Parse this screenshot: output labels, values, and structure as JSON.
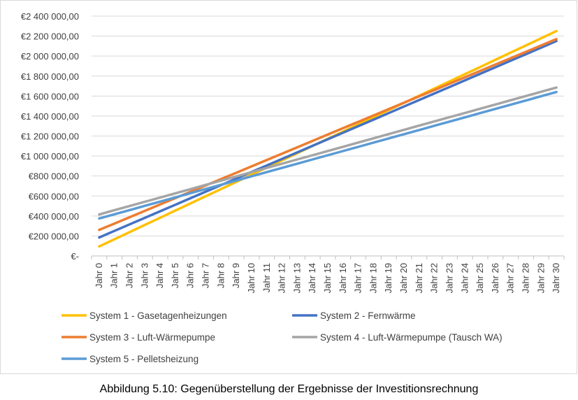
{
  "caption": "Abbildung 5.10: Gegenüberstellung der Ergebnisse der Investitionsrechnung",
  "chart_data": {
    "type": "line",
    "title": "",
    "xlabel": "",
    "ylabel": "",
    "ylim": [
      0,
      2400000
    ],
    "grid": true,
    "legend_position": "bottom",
    "y_ticks": [
      {
        "value": 0,
        "label": "€-"
      },
      {
        "value": 200000,
        "label": "€200 000,00"
      },
      {
        "value": 400000,
        "label": "€400 000,00"
      },
      {
        "value": 600000,
        "label": "€600 000,00"
      },
      {
        "value": 800000,
        "label": "€800 000,00"
      },
      {
        "value": 1000000,
        "label": "€1 000 000,00"
      },
      {
        "value": 1200000,
        "label": "€1 200 000,00"
      },
      {
        "value": 1400000,
        "label": "€1 400 000,00"
      },
      {
        "value": 1600000,
        "label": "€1 600 000,00"
      },
      {
        "value": 1800000,
        "label": "€1 800 000,00"
      },
      {
        "value": 2000000,
        "label": "€2 000 000,00"
      },
      {
        "value": 2200000,
        "label": "€2 200 000,00"
      },
      {
        "value": 2400000,
        "label": "€2 400 000,00"
      }
    ],
    "categories": [
      "Jahr 0",
      "Jahr 1",
      "Jahr 2",
      "Jahr 3",
      "Jahr 4",
      "Jahr 5",
      "Jahr 6",
      "Jahr 7",
      "Jahr 8",
      "Jahr 9",
      "Jahr 10",
      "Jahr 11",
      "Jahr 12",
      "Jahr 13",
      "Jahr 14",
      "Jahr 15",
      "Jahr 16",
      "Jahr 17",
      "Jahr 18",
      "Jahr 19",
      "Jahr 20",
      "Jahr 21",
      "Jahr 22",
      "Jahr 23",
      "Jahr 24",
      "Jahr 25",
      "Jahr 26",
      "Jahr 27",
      "Jahr 28",
      "Jahr 29",
      "Jahr 30"
    ],
    "series": [
      {
        "name": "System 1 - Gasetagenheizungen",
        "color": "#FFC000",
        "start": 95000,
        "end": 2250000
      },
      {
        "name": "System 2 - Fernwärme",
        "color": "#4472C4",
        "start": 185000,
        "end": 2150000
      },
      {
        "name": "System 3 - Luft-Wärmepumpe",
        "color": "#ED7D31",
        "start": 260000,
        "end": 2170000
      },
      {
        "name": "System 4 - Luft-Wärmepumpe (Tausch WA)",
        "color": "#A5A5A5",
        "start": 415000,
        "end": 1685000
      },
      {
        "name": "System 5 - Pelletsheizung",
        "color": "#5B9BD5",
        "start": 375000,
        "end": 1640000
      }
    ]
  }
}
